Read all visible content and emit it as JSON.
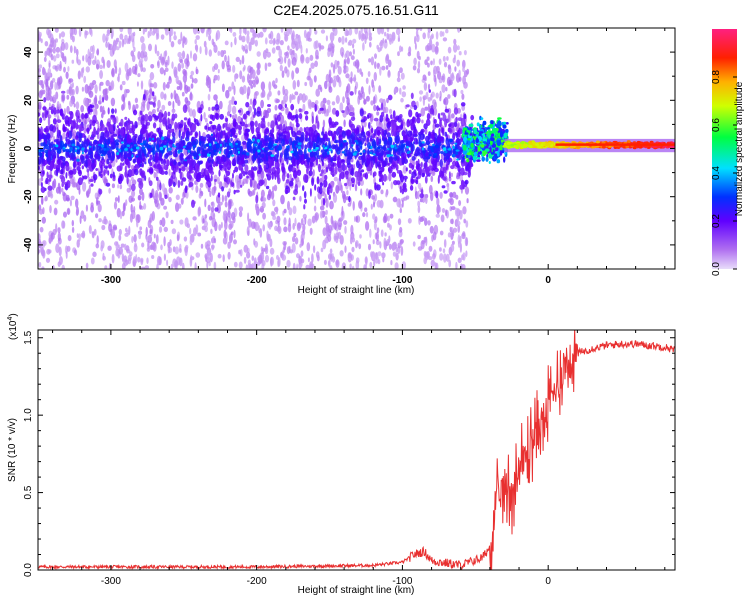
{
  "title": "C2E4.2025.075.16.51.G11",
  "colors": {
    "snr_line": "#e83030",
    "axis": "#000000"
  },
  "chart_data": [
    {
      "type": "heatmap",
      "xlabel": "Height of straight line (km)",
      "ylabel": "Frequency (Hz)",
      "xlim": [
        -350,
        87
      ],
      "ylim": [
        -50,
        50
      ],
      "xticks": [
        -300,
        -200,
        -100,
        0
      ],
      "yticks": [
        -40,
        -20,
        0,
        20,
        40
      ],
      "grid": false,
      "colormap": "rainbow (purple-blue-cyan-green-yellow-red-magenta)",
      "colorbar": {
        "label": "Normalized spectral amplitude",
        "range": [
          0,
          1
        ],
        "ticks": [
          "0.0",
          "0.2",
          "0.4",
          "0.6",
          "0.8"
        ]
      },
      "description_points": [
        {
          "x": -350,
          "spread_hz": 50,
          "peak_amp": 0.2
        },
        {
          "x": -120,
          "spread_hz": 50,
          "peak_amp": 0.35
        },
        {
          "x": -60,
          "spread_hz": 50,
          "peak_amp": 0.5
        },
        {
          "x": -45,
          "spread_hz": 8,
          "peak_amp": 0.6
        },
        {
          "x": -30,
          "spread_hz": 5,
          "peak_amp": 0.7
        },
        {
          "x": 0,
          "spread_hz": 3,
          "peak_amp": 0.9
        },
        {
          "x": 87,
          "spread_hz": 3,
          "peak_amp": 0.95
        }
      ]
    },
    {
      "type": "line",
      "xlabel": "Height of straight line (km)",
      "ylabel": "SNR (10 * v/v)",
      "scale_label": "(x10",
      "scale_exp": "4",
      "scale_close": ")",
      "xlim": [
        -350,
        87
      ],
      "ylim": [
        0,
        1.55
      ],
      "xticks": [
        -300,
        -200,
        -100,
        0
      ],
      "yticks": [
        "0.0",
        "0.5",
        "1.0",
        "1.5"
      ],
      "grid": false,
      "series": [
        {
          "x": [
            -350,
            -300,
            -200,
            -120,
            -100,
            -92,
            -85,
            -80,
            -60,
            -45,
            -40,
            -35,
            -30,
            -25,
            -20,
            -15,
            -10,
            -5,
            0,
            10,
            20,
            30,
            40,
            50,
            60,
            70,
            80,
            87
          ],
          "y": [
            0.02,
            0.02,
            0.02,
            0.03,
            0.05,
            0.1,
            0.12,
            0.06,
            0.03,
            0.08,
            0.15,
            0.45,
            0.55,
            0.5,
            0.65,
            0.75,
            0.85,
            0.95,
            1.05,
            1.3,
            1.4,
            1.43,
            1.45,
            1.46,
            1.46,
            1.45,
            1.44,
            1.42
          ]
        }
      ]
    }
  ]
}
